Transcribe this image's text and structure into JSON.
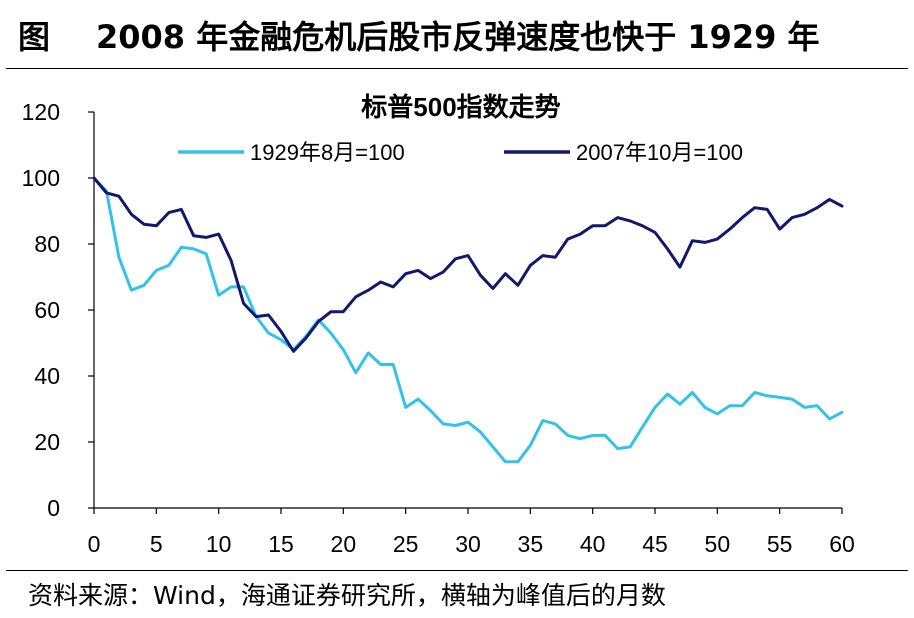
{
  "header": {
    "label": "图",
    "title": "2008 年金融危机后股市反弹速度也快于 1929 年"
  },
  "footer": {
    "source": "资料来源：Wind，海通证券研究所，横轴为峰值后的月数"
  },
  "colors": {
    "series_1929": "#33c3e8",
    "series_2007": "#12186e"
  },
  "chart_data": {
    "type": "line",
    "title": "标普500指数走势",
    "xlabel": "",
    "ylabel": "",
    "xlim": [
      0,
      60
    ],
    "ylim": [
      0,
      120
    ],
    "xticks": [
      0,
      5,
      10,
      15,
      20,
      25,
      30,
      35,
      40,
      45,
      50,
      55,
      60
    ],
    "yticks": [
      0,
      20,
      40,
      60,
      80,
      100,
      120
    ],
    "legend_position": "top",
    "series": [
      {
        "name": "1929年8月=100",
        "x": [
          0,
          1,
          2,
          3,
          4,
          5,
          6,
          7,
          8,
          9,
          10,
          11,
          12,
          13,
          14,
          15,
          16,
          17,
          18,
          19,
          20,
          21,
          22,
          23,
          24,
          25,
          26,
          27,
          28,
          29,
          30,
          31,
          32,
          33,
          34,
          35,
          36,
          37,
          38,
          39,
          40,
          41,
          42,
          43,
          44,
          45,
          46,
          47,
          48,
          49,
          50,
          51,
          52,
          53,
          54,
          55,
          56,
          57,
          58,
          59,
          60
        ],
        "values": [
          100,
          96,
          76,
          66,
          67.5,
          72,
          73.5,
          79,
          78.5,
          77,
          64.5,
          67,
          67,
          58,
          53,
          51,
          48,
          52,
          57,
          53,
          48,
          41,
          47,
          43.5,
          43.5,
          30.5,
          33,
          29.5,
          25.5,
          25,
          26,
          23,
          18.5,
          14,
          14,
          19,
          26.5,
          25.5,
          22,
          21,
          22,
          22,
          18,
          18.5,
          24.5,
          30.5,
          34.5,
          31.5,
          35,
          30.5,
          28.5,
          31,
          31,
          35,
          34,
          33.5,
          33,
          30.5,
          31,
          27,
          29
        ]
      },
      {
        "name": "2007年10月=100",
        "x": [
          0,
          1,
          2,
          3,
          4,
          5,
          6,
          7,
          8,
          9,
          10,
          11,
          12,
          13,
          14,
          15,
          16,
          17,
          18,
          19,
          20,
          21,
          22,
          23,
          24,
          25,
          26,
          27,
          28,
          29,
          30,
          31,
          32,
          33,
          34,
          35,
          36,
          37,
          38,
          39,
          40,
          41,
          42,
          43,
          44,
          45,
          46,
          47,
          48,
          49,
          50,
          51,
          52,
          53,
          54,
          55,
          56,
          57,
          58,
          59,
          60
        ],
        "values": [
          100,
          95.5,
          94.5,
          89,
          86,
          85.5,
          89.5,
          90.5,
          82.5,
          82,
          83,
          75,
          62,
          58,
          58.5,
          53.5,
          47.5,
          51.5,
          56.5,
          59.5,
          59.5,
          64,
          66,
          68.5,
          67,
          71,
          72,
          69.5,
          71.5,
          75.5,
          76.5,
          70.5,
          66.5,
          71,
          67.5,
          73.5,
          76.5,
          76,
          81.5,
          83,
          85.5,
          85.5,
          88,
          87,
          85.5,
          83.5,
          78.5,
          73,
          81,
          80.5,
          81.5,
          84.5,
          88,
          91,
          90.5,
          84.5,
          88,
          89,
          91,
          93.5,
          91.5
        ]
      }
    ]
  }
}
